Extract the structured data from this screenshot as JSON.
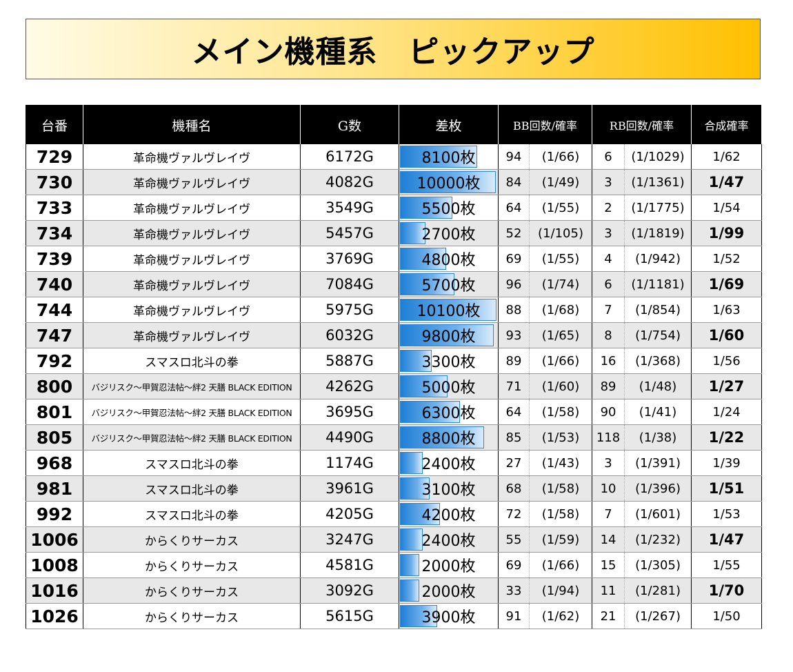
{
  "banner": {
    "title": "メイン機種系　ピックアップ"
  },
  "headers": [
    "台番",
    "機種名",
    "G数",
    "差枚",
    "BB回数/確率",
    "RB回数/確率",
    "合成確率"
  ],
  "rows": [
    {
      "no": "729",
      "model": "革命機ヴァルヴレイヴ",
      "games": "6172G",
      "diff": "8100枚",
      "diff_value": 8100,
      "bb": "94",
      "bb_rate": "(1/66)",
      "rb": "6",
      "rb_rate": "(1/1029)",
      "combo": "1/62",
      "combo_bold": false
    },
    {
      "no": "730",
      "model": "革命機ヴァルヴレイヴ",
      "games": "4082G",
      "diff": "10000枚",
      "diff_value": 10000,
      "bb": "84",
      "bb_rate": "(1/49)",
      "rb": "3",
      "rb_rate": "(1/1361)",
      "combo": "1/47",
      "combo_bold": true
    },
    {
      "no": "733",
      "model": "革命機ヴァルヴレイヴ",
      "games": "3549G",
      "diff": "5500枚",
      "diff_value": 5500,
      "bb": "64",
      "bb_rate": "(1/55)",
      "rb": "2",
      "rb_rate": "(1/1775)",
      "combo": "1/54",
      "combo_bold": false
    },
    {
      "no": "734",
      "model": "革命機ヴァルヴレイヴ",
      "games": "5457G",
      "diff": "2700枚",
      "diff_value": 2700,
      "bb": "52",
      "bb_rate": "(1/105)",
      "rb": "3",
      "rb_rate": "(1/1819)",
      "combo": "1/99",
      "combo_bold": true
    },
    {
      "no": "739",
      "model": "革命機ヴァルヴレイヴ",
      "games": "3769G",
      "diff": "4800枚",
      "diff_value": 4800,
      "bb": "69",
      "bb_rate": "(1/55)",
      "rb": "4",
      "rb_rate": "(1/942)",
      "combo": "1/52",
      "combo_bold": false
    },
    {
      "no": "740",
      "model": "革命機ヴァルヴレイヴ",
      "games": "7084G",
      "diff": "5700枚",
      "diff_value": 5700,
      "bb": "96",
      "bb_rate": "(1/74)",
      "rb": "6",
      "rb_rate": "(1/1181)",
      "combo": "1/69",
      "combo_bold": true
    },
    {
      "no": "744",
      "model": "革命機ヴァルヴレイヴ",
      "games": "5975G",
      "diff": "10100枚",
      "diff_value": 10100,
      "bb": "88",
      "bb_rate": "(1/68)",
      "rb": "7",
      "rb_rate": "(1/854)",
      "combo": "1/63",
      "combo_bold": false
    },
    {
      "no": "747",
      "model": "革命機ヴァルヴレイヴ",
      "games": "6032G",
      "diff": "9800枚",
      "diff_value": 9800,
      "bb": "93",
      "bb_rate": "(1/65)",
      "rb": "8",
      "rb_rate": "(1/754)",
      "combo": "1/60",
      "combo_bold": true
    },
    {
      "no": "792",
      "model": "スマスロ北斗の拳",
      "games": "5887G",
      "diff": "3300枚",
      "diff_value": 3300,
      "bb": "89",
      "bb_rate": "(1/66)",
      "rb": "16",
      "rb_rate": "(1/368)",
      "combo": "1/56",
      "combo_bold": false
    },
    {
      "no": "800",
      "model": "バジリスク～甲賀忍法帖～絆2 天膳 BLACK EDITION",
      "games": "4262G",
      "diff": "5000枚",
      "diff_value": 5000,
      "bb": "71",
      "bb_rate": "(1/60)",
      "rb": "89",
      "rb_rate": "(1/48)",
      "combo": "1/27",
      "combo_bold": true
    },
    {
      "no": "801",
      "model": "バジリスク～甲賀忍法帖～絆2 天膳 BLACK EDITION",
      "games": "3695G",
      "diff": "6300枚",
      "diff_value": 6300,
      "bb": "64",
      "bb_rate": "(1/58)",
      "rb": "90",
      "rb_rate": "(1/41)",
      "combo": "1/24",
      "combo_bold": false
    },
    {
      "no": "805",
      "model": "バジリスク～甲賀忍法帖～絆2 天膳 BLACK EDITION",
      "games": "4490G",
      "diff": "8800枚",
      "diff_value": 8800,
      "bb": "85",
      "bb_rate": "(1/53)",
      "rb": "118",
      "rb_rate": "(1/38)",
      "combo": "1/22",
      "combo_bold": true
    },
    {
      "no": "968",
      "model": "スマスロ北斗の拳",
      "games": "1174G",
      "diff": "2400枚",
      "diff_value": 2400,
      "bb": "27",
      "bb_rate": "(1/43)",
      "rb": "3",
      "rb_rate": "(1/391)",
      "combo": "1/39",
      "combo_bold": false
    },
    {
      "no": "981",
      "model": "スマスロ北斗の拳",
      "games": "3961G",
      "diff": "3100枚",
      "diff_value": 3100,
      "bb": "68",
      "bb_rate": "(1/58)",
      "rb": "10",
      "rb_rate": "(1/396)",
      "combo": "1/51",
      "combo_bold": true
    },
    {
      "no": "992",
      "model": "スマスロ北斗の拳",
      "games": "4205G",
      "diff": "4200枚",
      "diff_value": 4200,
      "bb": "72",
      "bb_rate": "(1/58)",
      "rb": "7",
      "rb_rate": "(1/601)",
      "combo": "1/53",
      "combo_bold": false
    },
    {
      "no": "1006",
      "model": "からくりサーカス",
      "games": "3247G",
      "diff": "2400枚",
      "diff_value": 2400,
      "bb": "55",
      "bb_rate": "(1/59)",
      "rb": "14",
      "rb_rate": "(1/232)",
      "combo": "1/47",
      "combo_bold": true
    },
    {
      "no": "1008",
      "model": "からくりサーカス",
      "games": "4581G",
      "diff": "2000枚",
      "diff_value": 2000,
      "bb": "69",
      "bb_rate": "(1/66)",
      "rb": "15",
      "rb_rate": "(1/305)",
      "combo": "1/55",
      "combo_bold": false
    },
    {
      "no": "1016",
      "model": "からくりサーカス",
      "games": "3092G",
      "diff": "2000枚",
      "diff_value": 2000,
      "bb": "33",
      "bb_rate": "(1/94)",
      "rb": "11",
      "rb_rate": "(1/281)",
      "combo": "1/70",
      "combo_bold": true
    },
    {
      "no": "1026",
      "model": "からくりサーカス",
      "games": "5615G",
      "diff": "3900枚",
      "diff_value": 3900,
      "bb": "91",
      "bb_rate": "(1/62)",
      "rb": "21",
      "rb_rate": "(1/267)",
      "combo": "1/50",
      "combo_bold": false
    }
  ]
}
